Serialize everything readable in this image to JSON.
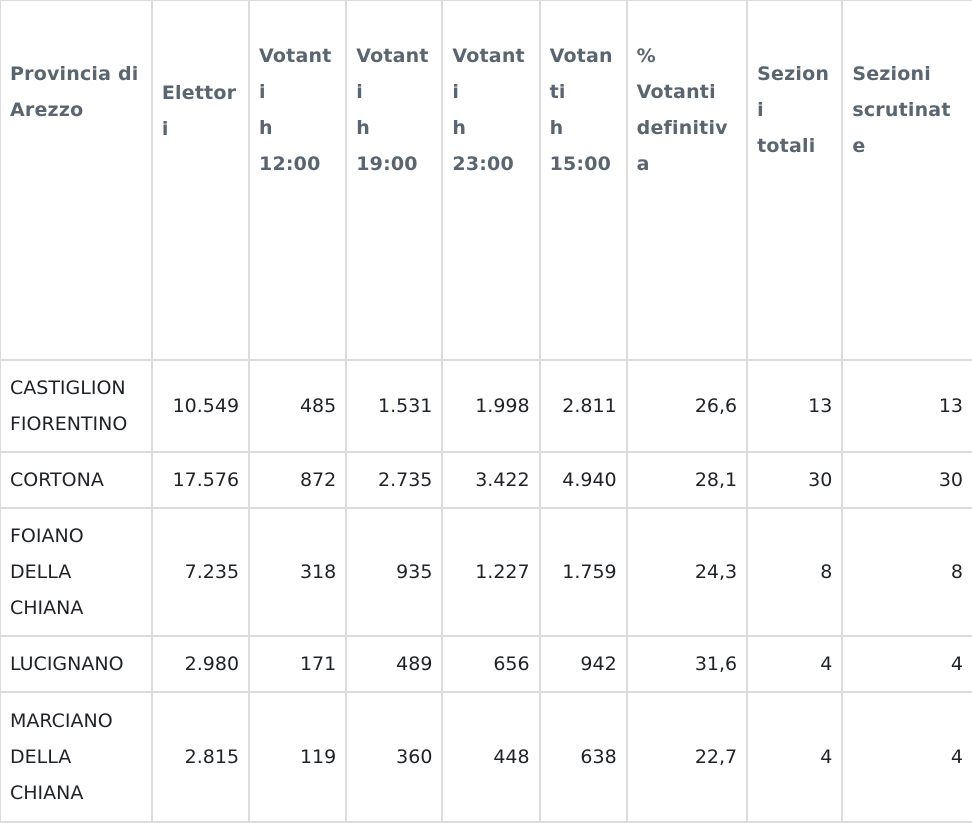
{
  "table": {
    "headers": [
      "Provincia di\nArezzo",
      "Elettori",
      "Votanti\nh\n12:00",
      "Votanti\nh\n19:00",
      "Votanti\nh\n23:00",
      "Votanti\nh\n15:00",
      "%\nVotanti\ndefinitiva",
      "Sezioni\ntotali",
      "Sezioni\nscrutinate"
    ],
    "rows": [
      [
        "CASTIGLION\nFIORENTINO",
        "10.549",
        "485",
        "1.531",
        "1.998",
        "2.811",
        "26,6",
        "13",
        "13"
      ],
      [
        "CORTONA",
        "17.576",
        "872",
        "2.735",
        "3.422",
        "4.940",
        "28,1",
        "30",
        "30"
      ],
      [
        "FOIANO\nDELLA\nCHIANA",
        "7.235",
        "318",
        "935",
        "1.227",
        "1.759",
        "24,3",
        "8",
        "8"
      ],
      [
        "LUCIGNANO",
        "2.980",
        "171",
        "489",
        "656",
        "942",
        "31,6",
        "4",
        "4"
      ],
      [
        "MARCIANO\nDELLA\nCHIANA",
        "2.815",
        "119",
        "360",
        "448",
        "638",
        "22,7",
        "4",
        "4"
      ]
    ]
  },
  "colors": {
    "header_text": "#5a6570",
    "cell_text": "#1f2328",
    "grid": "#dcdcdc",
    "background": "#ffffff"
  }
}
